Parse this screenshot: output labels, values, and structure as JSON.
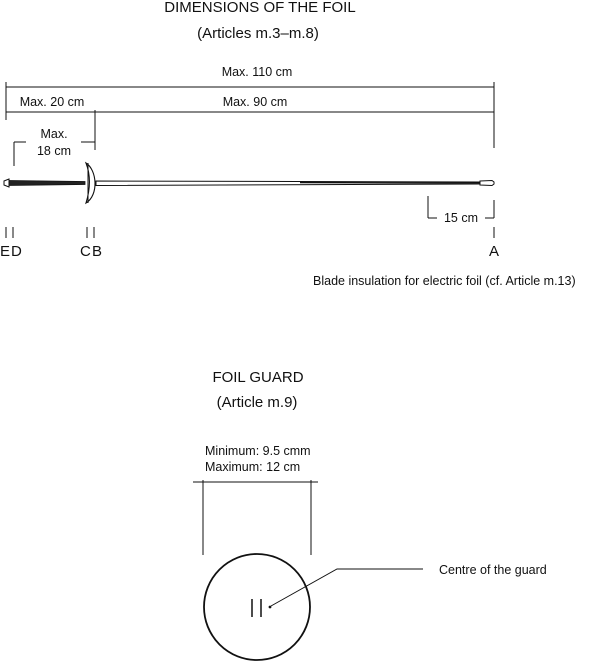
{
  "foil": {
    "title": "DIMENSIONS OF THE FOIL",
    "subtitle": "(Articles m.3–m.8)",
    "dim_total": "Max. 110 cm",
    "dim_handle": "Max. 20 cm",
    "dim_blade": "Max. 90 cm",
    "dim_grip_line1": "Max.",
    "dim_grip_line2": "18 cm",
    "dim_insulation": "15 cm",
    "point_e": "E",
    "point_d": "D",
    "point_c": "C",
    "point_b": "B",
    "point_a": "A",
    "insulation_note": "Blade insulation for electric foil (cf. Article m.13)"
  },
  "guard": {
    "title": "FOIL GUARD",
    "subtitle": "(Article m.9)",
    "min_label": "Minimum: 9.5 cmm",
    "max_label": "Maximum: 12 cm",
    "centre_label": "Centre of the guard"
  }
}
